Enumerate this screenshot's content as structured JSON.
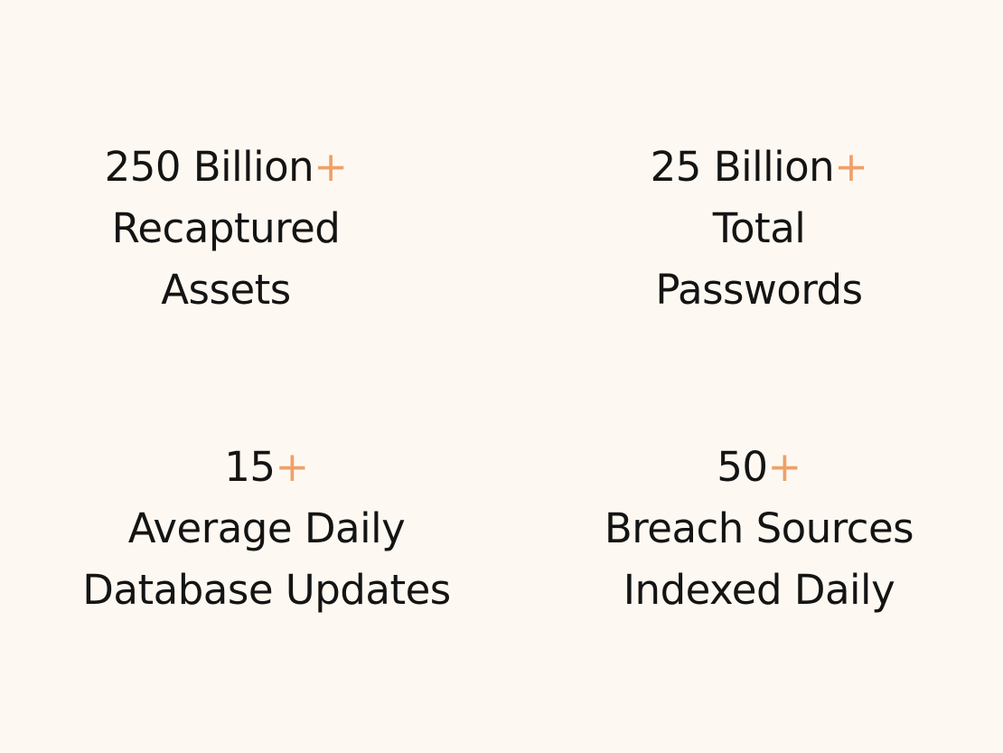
{
  "stats": [
    {
      "value": "250 Billion",
      "suffix": "+",
      "label_lines": [
        "Recaptured",
        "Assets"
      ]
    },
    {
      "value": "25 Billion",
      "suffix": "+",
      "label_lines": [
        "Total",
        "Passwords"
      ]
    },
    {
      "value": "15",
      "suffix": "+",
      "label_lines": [
        "Average Daily",
        "Database Updates"
      ]
    },
    {
      "value": "50",
      "suffix": "+",
      "label_lines": [
        "Breach Sources",
        "Indexed Daily"
      ]
    }
  ],
  "colors": {
    "background": "#fdf9f2",
    "text": "#141414",
    "accent": "#f0a067"
  }
}
